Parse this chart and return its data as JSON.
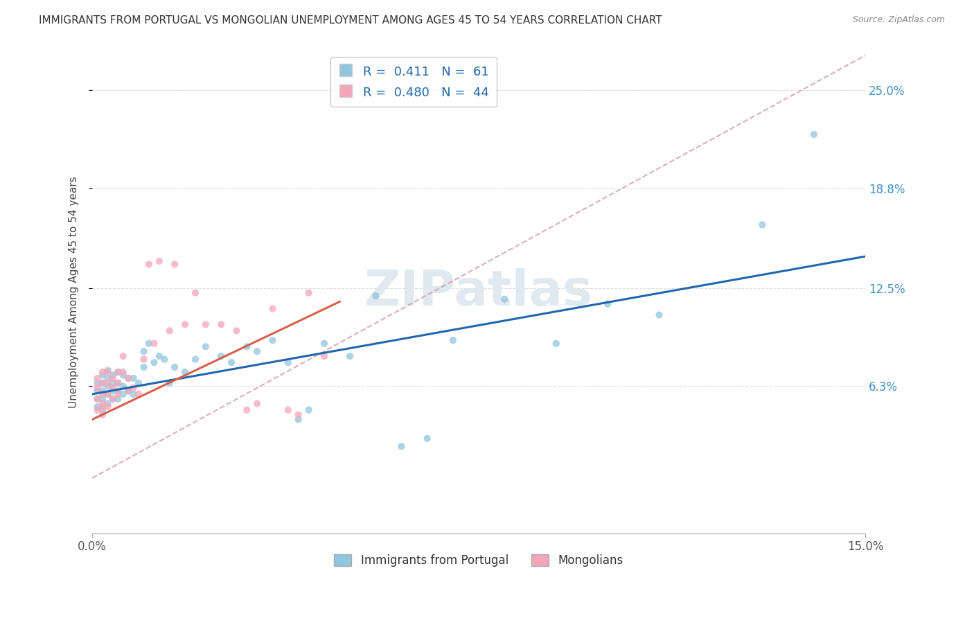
{
  "title": "IMMIGRANTS FROM PORTUGAL VS MONGOLIAN UNEMPLOYMENT AMONG AGES 45 TO 54 YEARS CORRELATION CHART",
  "source": "Source: ZipAtlas.com",
  "ylabel": "Unemployment Among Ages 45 to 54 years",
  "ytick_labels": [
    "6.3%",
    "12.5%",
    "18.8%",
    "25.0%"
  ],
  "ytick_values": [
    0.063,
    0.125,
    0.188,
    0.25
  ],
  "xmin": 0.0,
  "xmax": 0.15,
  "ymin": -0.03,
  "ymax": 0.275,
  "legend_blue_label": "Immigrants from Portugal",
  "legend_pink_label": "Mongolians",
  "r_blue": "0.411",
  "n_blue": "61",
  "r_pink": "0.480",
  "n_pink": "44",
  "color_blue": "#92c5de",
  "color_pink": "#f4a6b8",
  "trendline_blue_color": "#2166ac",
  "trendline_pink_color": "#d6604d",
  "trendline_dashed_color": "#d6a0aa",
  "blue_scatter_x": [
    0.001,
    0.001,
    0.001,
    0.001,
    0.002,
    0.002,
    0.002,
    0.002,
    0.002,
    0.003,
    0.003,
    0.003,
    0.003,
    0.003,
    0.004,
    0.004,
    0.004,
    0.004,
    0.005,
    0.005,
    0.005,
    0.005,
    0.006,
    0.006,
    0.006,
    0.007,
    0.007,
    0.008,
    0.008,
    0.009,
    0.01,
    0.01,
    0.011,
    0.012,
    0.013,
    0.014,
    0.015,
    0.016,
    0.018,
    0.02,
    0.022,
    0.025,
    0.027,
    0.03,
    0.032,
    0.035,
    0.038,
    0.04,
    0.042,
    0.045,
    0.05,
    0.055,
    0.06,
    0.065,
    0.07,
    0.08,
    0.09,
    0.1,
    0.11,
    0.13,
    0.14
  ],
  "blue_scatter_y": [
    0.05,
    0.055,
    0.06,
    0.065,
    0.048,
    0.055,
    0.06,
    0.065,
    0.07,
    0.052,
    0.058,
    0.063,
    0.068,
    0.073,
    0.055,
    0.06,
    0.065,
    0.07,
    0.055,
    0.06,
    0.065,
    0.072,
    0.058,
    0.063,
    0.07,
    0.06,
    0.068,
    0.058,
    0.068,
    0.065,
    0.075,
    0.085,
    0.09,
    0.078,
    0.082,
    0.08,
    0.065,
    0.075,
    0.072,
    0.08,
    0.088,
    0.082,
    0.078,
    0.088,
    0.085,
    0.092,
    0.078,
    0.042,
    0.048,
    0.09,
    0.082,
    0.12,
    0.025,
    0.03,
    0.092,
    0.118,
    0.09,
    0.115,
    0.108,
    0.165,
    0.222
  ],
  "pink_scatter_x": [
    0.001,
    0.001,
    0.001,
    0.001,
    0.002,
    0.002,
    0.002,
    0.002,
    0.002,
    0.002,
    0.003,
    0.003,
    0.003,
    0.003,
    0.004,
    0.004,
    0.004,
    0.005,
    0.005,
    0.005,
    0.006,
    0.006,
    0.007,
    0.007,
    0.008,
    0.009,
    0.01,
    0.011,
    0.012,
    0.013,
    0.015,
    0.016,
    0.018,
    0.02,
    0.022,
    0.025,
    0.028,
    0.03,
    0.032,
    0.035,
    0.038,
    0.04,
    0.042,
    0.045
  ],
  "pink_scatter_y": [
    0.048,
    0.055,
    0.062,
    0.068,
    0.05,
    0.058,
    0.065,
    0.072,
    0.045,
    0.052,
    0.05,
    0.058,
    0.065,
    0.072,
    0.055,
    0.062,
    0.068,
    0.058,
    0.065,
    0.072,
    0.072,
    0.082,
    0.06,
    0.068,
    0.062,
    0.058,
    0.08,
    0.14,
    0.09,
    0.142,
    0.098,
    0.14,
    0.102,
    0.122,
    0.102,
    0.102,
    0.098,
    0.048,
    0.052,
    0.112,
    0.048,
    0.045,
    0.122,
    0.082
  ],
  "trendline_blue_slope": 0.58,
  "trendline_blue_intercept": 0.058,
  "trendline_pink_slope": 1.55,
  "trendline_pink_intercept": 0.042,
  "trendline_dashed_slope": 1.78,
  "trendline_dashed_intercept": 0.005
}
